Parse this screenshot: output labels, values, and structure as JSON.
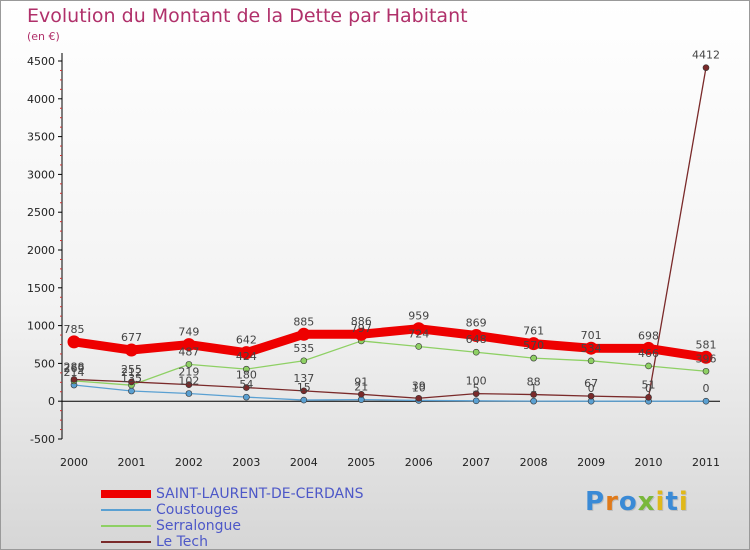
{
  "title": "Evolution du Montant de la Dette par Habitant",
  "unit_label": "(en €)",
  "logo": "Proxiti",
  "chart_data": {
    "type": "line",
    "title": "Evolution du Montant de la Dette par Habitant",
    "ylabel": "(en €)",
    "x": [
      "2000",
      "2001",
      "2002",
      "2003",
      "2004",
      "2005",
      "2006",
      "2007",
      "2008",
      "2009",
      "2010",
      "2011"
    ],
    "ylim": [
      -500,
      4500
    ],
    "yticks": [
      -500,
      0,
      500,
      1000,
      1500,
      2000,
      2500,
      3000,
      3500,
      4000,
      4500
    ],
    "grid": false,
    "legend_position": "bottom-left",
    "series": [
      {
        "name": "SAINT-LAURENT-DE-CERDANS",
        "color": "#ee0000",
        "values": [
          785,
          677,
          749,
          642,
          885,
          886,
          959,
          869,
          761,
          701,
          698,
          581
        ],
        "labels": [
          "785",
          "677",
          "749",
          "642",
          "885",
          "886",
          "959",
          "869",
          "761",
          "701",
          "698",
          "581"
        ]
      },
      {
        "name": "Coustouges",
        "color": "#5aa0d2",
        "values": [
          214,
          135,
          102,
          54,
          15,
          21,
          10,
          5,
          1,
          0,
          0,
          0
        ],
        "labels": [
          "214",
          "135",
          "102",
          "54",
          "15",
          "21",
          "10",
          "5",
          "1",
          "0",
          "0",
          "0"
        ]
      },
      {
        "name": "Serralongue",
        "color": "#8ed064",
        "values": [
          269,
          212,
          487,
          424,
          535,
          797,
          724,
          648,
          570,
          534,
          466,
          396
        ],
        "labels": [
          "269",
          "212",
          "487",
          "424",
          "535",
          "797",
          "724",
          "648",
          "570",
          "534",
          "466",
          "396"
        ]
      },
      {
        "name": "Le Tech",
        "color": "#7a2a2a",
        "values": [
          288,
          255,
          219,
          180,
          137,
          91,
          39,
          100,
          88,
          67,
          51,
          4412
        ],
        "labels": [
          "288",
          "255",
          "219",
          "180",
          "137",
          "91",
          "39",
          "100",
          "88",
          "67",
          "51",
          "4412"
        ]
      }
    ]
  },
  "colors": {
    "title": "#b0306a",
    "legend_text": "#4d58c8",
    "axis": "#000000"
  }
}
